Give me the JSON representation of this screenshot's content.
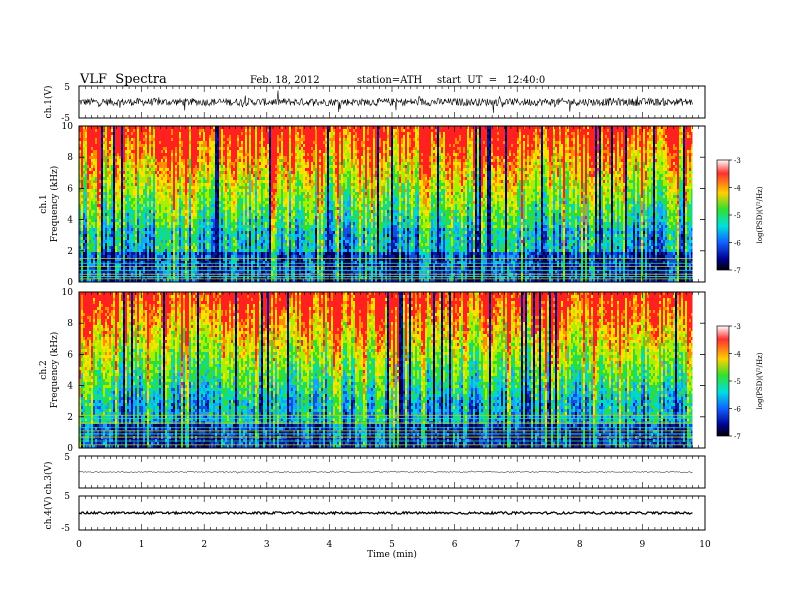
{
  "header": {
    "title": "VLF  Spectra",
    "date": "Feb. 18, 2012",
    "station": "station=ATH",
    "start": "start  UT  =   12:40:0"
  },
  "chart_data": [
    {
      "type": "line",
      "panel": "ch1-waveform",
      "ylabel": "ch.1(V)",
      "ylim": [
        -5,
        5
      ],
      "y_ticks": [
        "5",
        "-5"
      ],
      "xlim": [
        0,
        10
      ],
      "x_end": 9.8,
      "baseline": 0,
      "amplitude": 1.2,
      "spikes": 2.8
    },
    {
      "type": "heatmap",
      "panel": "ch1-spectrogram",
      "ylabel": [
        "ch.1",
        "Frequency  (kHz)"
      ],
      "ylim": [
        0,
        10
      ],
      "y_ticks": [
        "0",
        "2",
        "4",
        "6",
        "8",
        "10"
      ],
      "xlim": [
        0,
        10
      ],
      "x_end": 9.8,
      "colorbar": {
        "label": "log(PSD)(V²/Hz)",
        "range": [
          -7,
          -3
        ],
        "ticks": [
          "-3",
          "-4",
          "-5",
          "-6",
          "-7"
        ]
      },
      "band_khz": [
        2,
        3.5
      ],
      "lines_khz": [
        0.2,
        0.35,
        0.5,
        0.75,
        1.0,
        1.2,
        1.5
      ]
    },
    {
      "type": "heatmap",
      "panel": "ch2-spectrogram",
      "ylabel": [
        "ch.2",
        "Frequency  (kHz)"
      ],
      "ylim": [
        0,
        10
      ],
      "y_ticks": [
        "0",
        "2",
        "4",
        "6",
        "8",
        "10"
      ],
      "xlim": [
        0,
        10
      ],
      "x_end": 9.8,
      "colorbar": {
        "label": "log(PSD)(V²/Hz)",
        "range": [
          -7,
          -3
        ],
        "ticks": [
          "-3",
          "-4",
          "-5",
          "-6",
          "-7"
        ]
      },
      "band_khz": [
        1.5,
        3.0
      ],
      "lines_khz": [
        0.2,
        0.45,
        0.7,
        0.9,
        1.1,
        1.3,
        1.6,
        1.9,
        2.1
      ]
    },
    {
      "type": "line",
      "panel": "ch3-waveform",
      "ylabel": "ch.3(V)",
      "ylim": [
        -5,
        5
      ],
      "y_ticks": [
        "5",
        "-5"
      ],
      "xlim": [
        0,
        10
      ],
      "x_end": 9.8,
      "baseline": 0,
      "amplitude": 0.15,
      "spikes": 0.4
    },
    {
      "type": "line",
      "panel": "ch4-waveform",
      "ylabel": "ch.4(V)",
      "ylim": [
        -5,
        5
      ],
      "y_ticks": [
        "5",
        "-5"
      ],
      "xlim": [
        0,
        10
      ],
      "x_end": 9.8,
      "baseline": 0,
      "amplitude": 0.35,
      "spikes": 0.4
    }
  ],
  "x_axis": {
    "label": "Time  (min)",
    "ticks": [
      "0",
      "1",
      "2",
      "3",
      "4",
      "5",
      "6",
      "7",
      "8",
      "9",
      "10"
    ]
  }
}
